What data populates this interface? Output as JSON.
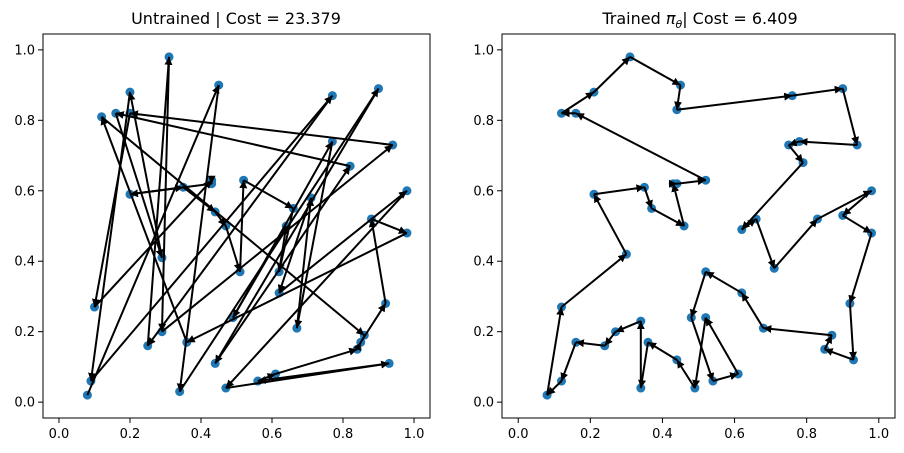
{
  "colors": {
    "city": "#1f77b4",
    "edge": "#000000",
    "background": "#ffffff"
  },
  "chart_data": [
    {
      "type": "scatter",
      "title": "Untrained | Cost = 23.379",
      "xlim": [
        -0.045,
        1.045
      ],
      "ylim": [
        -0.045,
        1.045
      ],
      "x_ticks": [
        "0.0",
        "0.2",
        "0.4",
        "0.6",
        "0.8",
        "1.0"
      ],
      "y_ticks": [
        "0.0",
        "0.2",
        "0.4",
        "0.6",
        "0.8",
        "1.0"
      ],
      "grid": false,
      "path": [
        [
          0.08,
          0.02
        ],
        [
          0.45,
          0.9
        ],
        [
          0.34,
          0.03
        ],
        [
          0.9,
          0.89
        ],
        [
          0.44,
          0.11
        ],
        [
          0.82,
          0.67
        ],
        [
          0.16,
          0.82
        ],
        [
          0.29,
          0.41
        ],
        [
          0.2,
          0.88
        ],
        [
          0.09,
          0.06
        ],
        [
          0.77,
          0.87
        ],
        [
          0.25,
          0.16
        ],
        [
          0.31,
          0.98
        ],
        [
          0.29,
          0.2
        ],
        [
          0.94,
          0.73
        ],
        [
          0.2,
          0.82
        ],
        [
          0.1,
          0.27
        ],
        [
          0.43,
          0.63
        ],
        [
          0.43,
          0.62
        ],
        [
          0.2,
          0.59
        ],
        [
          0.35,
          0.61
        ],
        [
          0.44,
          0.54
        ],
        [
          0.47,
          0.5
        ],
        [
          0.51,
          0.37
        ],
        [
          0.52,
          0.63
        ],
        [
          0.66,
          0.55
        ],
        [
          0.62,
          0.37
        ],
        [
          0.64,
          0.5
        ],
        [
          0.49,
          0.24
        ],
        [
          0.77,
          0.74
        ],
        [
          0.67,
          0.21
        ],
        [
          0.71,
          0.58
        ],
        [
          0.62,
          0.31
        ],
        [
          0.98,
          0.6
        ],
        [
          0.47,
          0.04
        ],
        [
          0.93,
          0.11
        ],
        [
          0.56,
          0.06
        ],
        [
          0.61,
          0.08
        ],
        [
          0.84,
          0.15
        ],
        [
          0.85,
          0.17
        ],
        [
          0.92,
          0.28
        ],
        [
          0.88,
          0.52
        ],
        [
          0.98,
          0.48
        ],
        [
          0.36,
          0.17
        ],
        [
          0.12,
          0.81
        ],
        [
          0.86,
          0.19
        ]
      ]
    },
    {
      "type": "scatter",
      "title_text": "Trained ",
      "title_symbol": "π",
      "title_symbol_sub": "θ",
      "title_rest": "| Cost = 6.409",
      "xlim": [
        -0.045,
        1.045
      ],
      "ylim": [
        -0.045,
        1.045
      ],
      "x_ticks": [
        "0.0",
        "0.2",
        "0.4",
        "0.6",
        "0.8",
        "1.0"
      ],
      "y_ticks": [
        "0.0",
        "0.2",
        "0.4",
        "0.6",
        "0.8",
        "1.0"
      ],
      "grid": false,
      "path": [
        [
          0.52,
          0.63
        ],
        [
          0.16,
          0.82
        ],
        [
          0.12,
          0.82
        ],
        [
          0.21,
          0.88
        ],
        [
          0.31,
          0.98
        ],
        [
          0.45,
          0.9
        ],
        [
          0.44,
          0.83
        ],
        [
          0.76,
          0.87
        ],
        [
          0.9,
          0.89
        ],
        [
          0.94,
          0.73
        ],
        [
          0.78,
          0.74
        ],
        [
          0.75,
          0.73
        ],
        [
          0.79,
          0.68
        ],
        [
          0.62,
          0.49
        ],
        [
          0.66,
          0.52
        ],
        [
          0.71,
          0.38
        ],
        [
          0.83,
          0.52
        ],
        [
          0.98,
          0.6
        ],
        [
          0.9,
          0.53
        ],
        [
          0.98,
          0.48
        ],
        [
          0.92,
          0.28
        ],
        [
          0.93,
          0.12
        ],
        [
          0.85,
          0.15
        ],
        [
          0.87,
          0.19
        ],
        [
          0.68,
          0.21
        ],
        [
          0.62,
          0.31
        ],
        [
          0.52,
          0.37
        ],
        [
          0.48,
          0.24
        ],
        [
          0.54,
          0.06
        ],
        [
          0.61,
          0.08
        ],
        [
          0.52,
          0.24
        ],
        [
          0.49,
          0.04
        ],
        [
          0.44,
          0.12
        ],
        [
          0.36,
          0.17
        ],
        [
          0.34,
          0.04
        ],
        [
          0.34,
          0.23
        ],
        [
          0.27,
          0.2
        ],
        [
          0.24,
          0.16
        ],
        [
          0.16,
          0.17
        ],
        [
          0.12,
          0.06
        ],
        [
          0.08,
          0.02
        ],
        [
          0.12,
          0.27
        ],
        [
          0.3,
          0.42
        ],
        [
          0.21,
          0.59
        ],
        [
          0.35,
          0.61
        ],
        [
          0.37,
          0.55
        ],
        [
          0.46,
          0.5
        ],
        [
          0.43,
          0.62
        ],
        [
          0.44,
          0.62
        ],
        [
          0.52,
          0.63
        ]
      ]
    }
  ]
}
